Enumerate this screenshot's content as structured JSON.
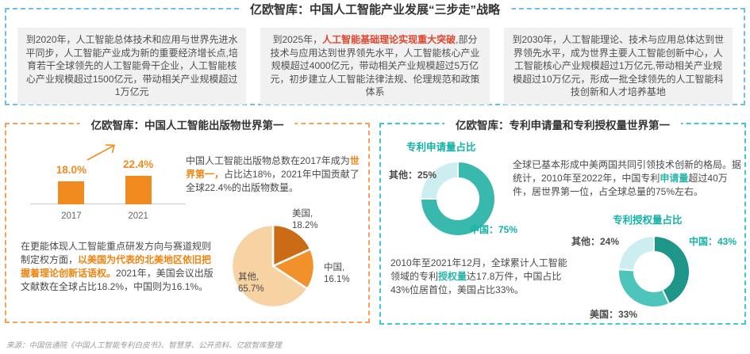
{
  "page_title": "亿欧智库：中国人工智能产业发展“三步走”战略",
  "colors": {
    "accent_orange": "#f28b1f",
    "accent_red": "#e0462e",
    "accent_teal": "#2ab5a9",
    "top_border_blue": "#6ac0e8",
    "left_border_orange": "#f4a257",
    "right_border_cyan": "#3fc7d2",
    "panel_gray": "#f1f1f2"
  },
  "top_section": {
    "title": "亿欧智库：中国人工智能产业发展“三步走”战略",
    "goals": [
      {
        "segments": [
          {
            "t": "到2020年，人工智能总体技术和应用与世界先进水平同步，人工智能产业成为新的重要经济增长点,培育若干全球领先的人工智能骨干企业，人工智能核心产业规模超过1500亿元，带动相关产业规模超过1万亿元"
          }
        ]
      },
      {
        "segments": [
          {
            "t": "到2025年，"
          },
          {
            "t": "人工智能基础理论实现重大突破",
            "s": "hl-red"
          },
          {
            "t": ",部分技术与应用达到世界领先水平，人工智能核心产业规模超过4000亿元，带动相关产业规模超过5万亿元，初步建立人工智能法律法规、伦理规范和政策体系"
          }
        ]
      },
      {
        "segments": [
          {
            "t": "到2030年，人工智能理论、技术与应用总体达到世界领先水平，成为世界主要人工智能创新中心，人工智能核心产业规模超过1万亿元,带动相关产业规模超过10万亿元，形成一批全球领先的人工智能科技创新和人才培养基地"
          }
        ]
      }
    ]
  },
  "left_section": {
    "title": "亿欧智库：中国人工智能出版物世界第一",
    "para1": {
      "segments": [
        {
          "t": "中国人工智能出版物总数在2017年成为"
        },
        {
          "t": "世界第一，",
          "s": "hl-orange"
        },
        {
          "t": "占比达18%，2021年中国贡献了全球22.4%的出版物数量。"
        }
      ]
    },
    "para2": {
      "segments": [
        {
          "t": "在更能体现人工智能重点研发方向与赛道规则制定权方面，"
        },
        {
          "t": "以美国为代表的北美地区依旧把握着理论创新话语权。",
          "s": "hl-orange"
        },
        {
          "t": "2021年，美国会议出版文献数在全球占比18.2%，中国则为16.1%。"
        }
      ]
    }
  },
  "right_section": {
    "title": "亿欧智库：专利申请量和专利授权量世界第一",
    "para1": {
      "segments": [
        {
          "t": "全球已基本形成中美两国共同引领技术创新的格局。据统计，2010年至2022年，中国专利"
        },
        {
          "t": "申请量",
          "s": "hl-teal"
        },
        {
          "t": "超过40万件，居世界第一位，占全球总量的75%左右。"
        }
      ]
    },
    "para2": {
      "segments": [
        {
          "t": "2010年至2021年12月，全球累计人工智能领域的专利"
        },
        {
          "t": "授权量",
          "s": "hl-teal"
        },
        {
          "t": "达17.8万件，中国占比43%位居首位，美国占比33%。"
        }
      ]
    }
  },
  "footer": {
    "source": "来源：中国信通院《中国人工智能专利白皮书》、智慧芽、公开资料、亿欧智库整理"
  },
  "chart_data": [
    {
      "id": "publications-bar",
      "type": "bar",
      "title": "中国人工智能出版物全球占比",
      "categories": [
        "2017",
        "2021"
      ],
      "values": [
        18.0,
        22.4
      ],
      "value_labels": [
        "18.0%",
        "22.4%"
      ],
      "bar_color": "#f28b1f",
      "ylim": [
        0,
        30
      ],
      "grid": false
    },
    {
      "id": "publications-pie",
      "type": "pie",
      "title": "2021年全球会议出版文献占比",
      "slices": [
        {
          "name": "美国",
          "value": 18.2,
          "l1": "美国,",
          "l2": "18.2%",
          "color": "#cb6b16"
        },
        {
          "name": "中国",
          "value": 16.1,
          "l1": "中国,",
          "l2": "16.1%",
          "color": "#f0912b"
        },
        {
          "name": "其他",
          "value": 65.7,
          "l1": "其他,",
          "l2": "65.7%",
          "color": "#f7d2a3"
        }
      ]
    },
    {
      "id": "patent-applications-donut",
      "type": "donut",
      "title": "专利申请量占比",
      "slices": [
        {
          "name": "中国",
          "value": 75,
          "callout": "中国：75%",
          "color": "#39b9ad"
        },
        {
          "name": "其他",
          "value": 25,
          "callout": "其他：25%",
          "color": "#cdeef1"
        }
      ]
    },
    {
      "id": "patent-grants-donut",
      "type": "donut",
      "title": "专利授权量占比",
      "slices": [
        {
          "name": "中国",
          "value": 43,
          "callout": "中国：43%",
          "color": "#1f968a"
        },
        {
          "name": "美国",
          "value": 33,
          "callout": "美国：33%",
          "color": "#4ec5bb"
        },
        {
          "name": "其他",
          "value": 24,
          "callout": "其他：24%",
          "color": "#cdeef1"
        }
      ]
    }
  ]
}
